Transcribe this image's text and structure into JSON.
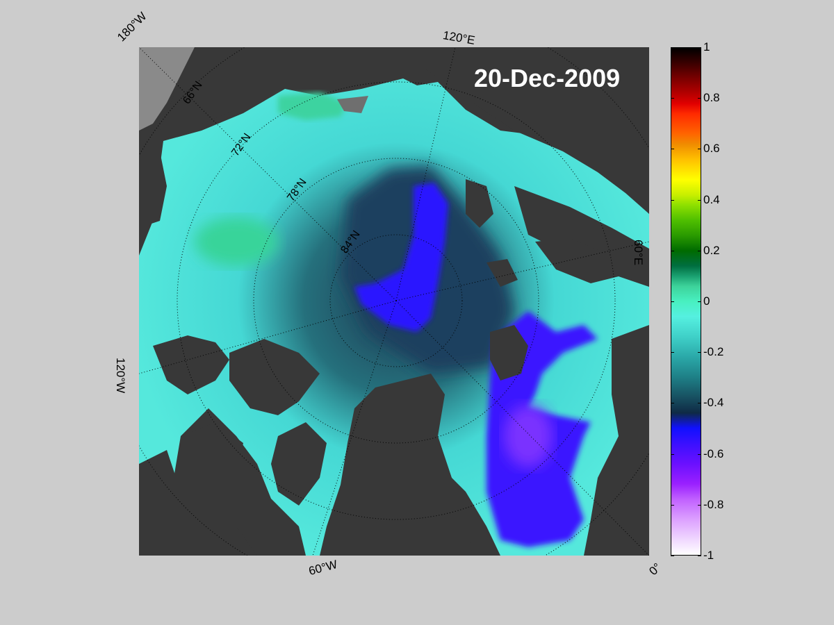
{
  "date": "20-Dec-2009",
  "longitude_labels": [
    "180°W",
    "120°E",
    "60°E",
    "0°",
    "60°W",
    "120°W"
  ],
  "latitude_labels": [
    "66°N",
    "72°N",
    "78°N",
    "84°N"
  ],
  "colorbar": {
    "ticks": [
      "1",
      "0.8",
      "0.6",
      "0.4",
      "0.2",
      "0",
      "-0.2",
      "-0.4",
      "-0.6",
      "-0.8",
      "-1"
    ],
    "vmin": -1,
    "vmax": 1
  },
  "colors": {
    "background": "#cccccc",
    "land": "#383838",
    "ice_shelf": "#8a8a8a",
    "ocean_high": "#55f0e0",
    "ocean_low": "#1010ff"
  }
}
